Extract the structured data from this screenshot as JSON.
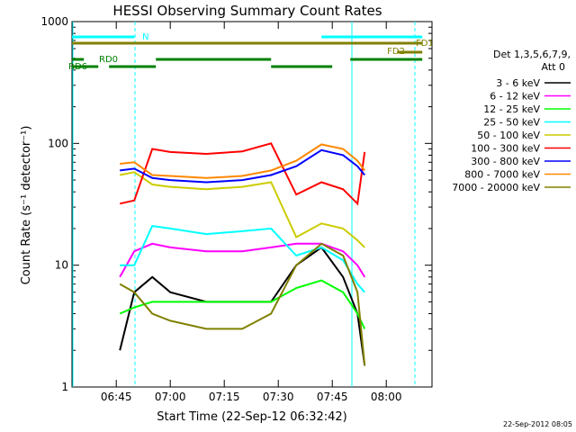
{
  "chart_data": {
    "type": "line",
    "title": "HESSI Observing Summary Count Rates",
    "xlabel": "Start Time (22-Sep-12 06:32:42)",
    "ylabel": "Count Rate (s⁻¹ detector⁻¹)",
    "yscale": "log",
    "ylim": [
      1,
      1000
    ],
    "xlim_minutes_after_0632_42": [
      0,
      100
    ],
    "y_ticks": [
      {
        "value": 1,
        "label": "1"
      },
      {
        "value": 10,
        "label": "10"
      },
      {
        "value": 100,
        "label": "100"
      },
      {
        "value": 1000,
        "label": "1000"
      }
    ],
    "x_ticks": [
      {
        "time": "06:45",
        "label": "06:45"
      },
      {
        "time": "07:00",
        "label": "07:00"
      },
      {
        "time": "07:15",
        "label": "07:15"
      },
      {
        "time": "07:30",
        "label": "07:30"
      },
      {
        "time": "07:45",
        "label": "07:45"
      },
      {
        "time": "08:00",
        "label": "08:00"
      }
    ],
    "legend": {
      "placement": "right",
      "header_line1": "Det 1,3,5,6,7,9,",
      "header_line2": "Att 0"
    },
    "series": [
      {
        "name": "3 - 6 keV",
        "color": "#000000",
        "x": [
          "06:46",
          "06:50",
          "06:55",
          "07:00",
          "07:10",
          "07:20",
          "07:28",
          "07:35",
          "07:42",
          "07:48",
          "07:52",
          "07:54"
        ],
        "y": [
          2,
          6,
          8,
          6,
          5,
          5,
          5,
          10,
          14,
          8,
          4,
          1.5
        ]
      },
      {
        "name": "6 - 12 keV",
        "color": "#ff00ff",
        "x": [
          "06:46",
          "06:50",
          "06:55",
          "07:00",
          "07:10",
          "07:20",
          "07:28",
          "07:35",
          "07:42",
          "07:48",
          "07:52",
          "07:54"
        ],
        "y": [
          8,
          13,
          15,
          14,
          13,
          13,
          14,
          15,
          15,
          13,
          10,
          8
        ]
      },
      {
        "name": "12 - 25 keV",
        "color": "#00ff00",
        "x": [
          "06:46",
          "06:50",
          "06:55",
          "07:00",
          "07:10",
          "07:20",
          "07:28",
          "07:35",
          "07:42",
          "07:48",
          "07:52",
          "07:54"
        ],
        "y": [
          4,
          4.5,
          5,
          5,
          5,
          5,
          5,
          6.5,
          7.5,
          6,
          4,
          3
        ]
      },
      {
        "name": "25 - 50 keV",
        "color": "#00ffff",
        "x": [
          "06:46",
          "06:50",
          "06:55",
          "07:00",
          "07:10",
          "07:20",
          "07:28",
          "07:35",
          "07:42",
          "07:48",
          "07:52",
          "07:54"
        ],
        "y": [
          10,
          10,
          21,
          20,
          18,
          19,
          20,
          12,
          14,
          11,
          7,
          6
        ]
      },
      {
        "name": "50 - 100 keV",
        "color": "#cccc00",
        "x": [
          "06:46",
          "06:50",
          "06:55",
          "07:00",
          "07:10",
          "07:20",
          "07:28",
          "07:35",
          "07:42",
          "07:48",
          "07:52",
          "07:54"
        ],
        "y": [
          55,
          58,
          46,
          44,
          42,
          44,
          48,
          17,
          22,
          20,
          16,
          14
        ]
      },
      {
        "name": "100 - 300 keV",
        "color": "#ff0000",
        "x": [
          "06:46",
          "06:50",
          "06:55",
          "07:00",
          "07:10",
          "07:20",
          "07:28",
          "07:35",
          "07:42",
          "07:48",
          "07:52",
          "07:54"
        ],
        "y": [
          32,
          34,
          90,
          85,
          82,
          86,
          100,
          38,
          48,
          42,
          32,
          85
        ]
      },
      {
        "name": "300 - 800 keV",
        "color": "#0000ff",
        "x": [
          "06:46",
          "06:50",
          "06:55",
          "07:00",
          "07:10",
          "07:20",
          "07:28",
          "07:35",
          "07:42",
          "07:48",
          "07:52",
          "07:54"
        ],
        "y": [
          60,
          62,
          52,
          50,
          48,
          50,
          55,
          65,
          88,
          80,
          65,
          55
        ]
      },
      {
        "name": "800 - 7000 keV",
        "color": "#ff8800",
        "x": [
          "06:46",
          "06:50",
          "06:55",
          "07:00",
          "07:10",
          "07:20",
          "07:28",
          "07:35",
          "07:42",
          "07:48",
          "07:52",
          "07:54"
        ],
        "y": [
          68,
          70,
          55,
          54,
          52,
          54,
          60,
          72,
          98,
          90,
          72,
          60
        ]
      },
      {
        "name": "7000 - 20000 keV",
        "color": "#808000",
        "x": [
          "06:46",
          "06:50",
          "06:55",
          "07:00",
          "07:10",
          "07:20",
          "07:28",
          "07:35",
          "07:42",
          "07:48",
          "07:52",
          "07:54"
        ],
        "y": [
          7,
          6,
          4,
          3.5,
          3,
          3,
          4,
          10,
          15,
          12,
          6,
          1.5
        ]
      }
    ],
    "flag_bars": [
      {
        "label": "N",
        "color": "#00ffff",
        "segments": [
          [
            "06:32",
            "06:50"
          ],
          [
            "07:42",
            "08:10"
          ]
        ]
      },
      {
        "label": "FD1",
        "color": "#808000",
        "segments": [
          [
            "06:32",
            "08:10"
          ]
        ]
      },
      {
        "label": "FD2",
        "color": "#808000",
        "segments": [
          [
            "08:03",
            "08:10"
          ]
        ]
      },
      {
        "label": "RD0",
        "color": "#008000",
        "segments": [
          [
            "06:32",
            "06:36"
          ],
          [
            "06:56",
            "07:28"
          ],
          [
            "07:50",
            "08:10"
          ]
        ]
      },
      {
        "label": "RD6",
        "color": "#008000",
        "segments": [
          [
            "06:32",
            "06:40"
          ],
          [
            "06:43",
            "06:56"
          ],
          [
            "07:28",
            "07:45"
          ]
        ]
      }
    ],
    "footer_date": "22-Sep-2012 08:05"
  }
}
